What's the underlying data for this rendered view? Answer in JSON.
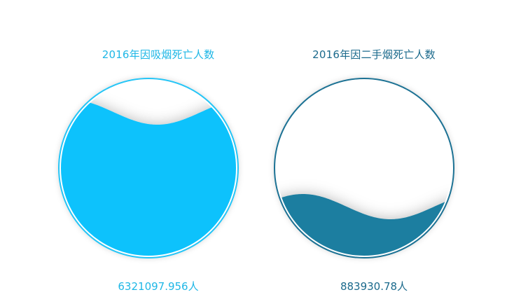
{
  "chart_data": [
    {
      "type": "liquidfill",
      "title": "2016年因吸烟死亡人数",
      "value": 6321097.956,
      "value_label": "6321097.956人",
      "fill_level": 0.82,
      "color": "#0ac2fc",
      "border_color": "#26c5f6",
      "title_color": "#1fb7e6"
    },
    {
      "type": "liquidfill",
      "title": "2016年因二手烟死亡人数",
      "value": 883930.78,
      "value_label": "883930.78人",
      "fill_level": 0.28,
      "color": "#1a7ea0",
      "border_color": "#1f7294",
      "title_color": "#1b6a8c"
    }
  ]
}
